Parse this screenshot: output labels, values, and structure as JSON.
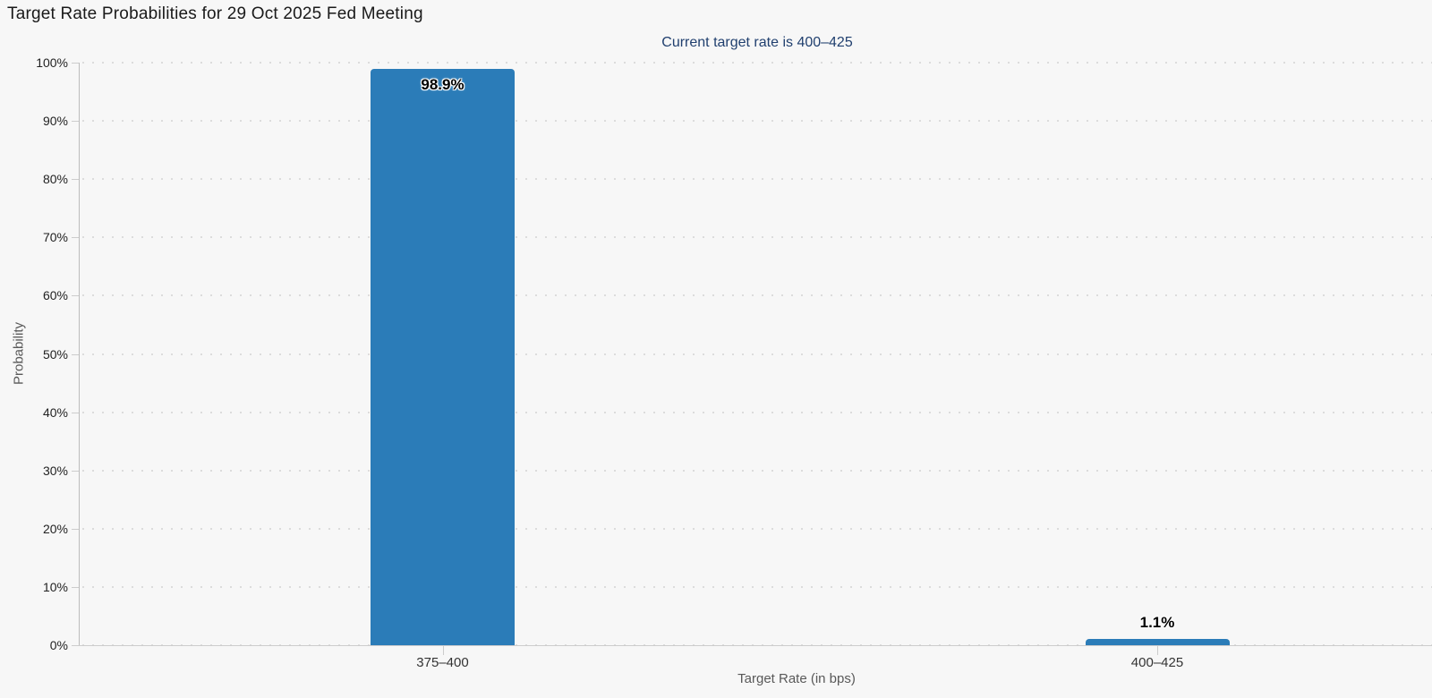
{
  "page": {
    "background_color": "#f7f7f7"
  },
  "chart_data": {
    "type": "bar",
    "title": "Target Rate Probabilities for 29 Oct 2025 Fed Meeting",
    "subtitle": "Current target rate is 400–425",
    "categories": [
      "375–400",
      "400–425"
    ],
    "values": [
      98.9,
      1.1
    ],
    "value_labels": [
      "98.9%",
      "1.1%"
    ],
    "xlabel": "Target Rate (in bps)",
    "ylabel": "Probability",
    "ylim": [
      0,
      100
    ],
    "ytick_step": 10,
    "ytick_labels": [
      "0%",
      "10%",
      "20%",
      "30%",
      "40%",
      "50%",
      "60%",
      "70%",
      "80%",
      "90%",
      "100%"
    ],
    "grid": "dotted horizontal gridlines, light grey",
    "legend": "none",
    "bar_color": "#2b7cb8",
    "subtitle_color": "#21406f",
    "title_color": "#1a1a1a",
    "axis_title_color": "#595959"
  }
}
